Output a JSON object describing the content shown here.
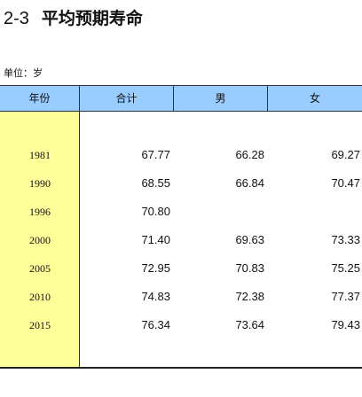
{
  "title": {
    "number": "2-3",
    "text": "平均预期寿命"
  },
  "unit": "单位：岁",
  "table": {
    "headers": [
      "年份",
      "合计",
      "男",
      "女"
    ],
    "rows": [
      {
        "year": "1981",
        "total": "67.77",
        "male": "66.28",
        "female": "69.27"
      },
      {
        "year": "1990",
        "total": "68.55",
        "male": "66.84",
        "female": "70.47"
      },
      {
        "year": "1996",
        "total": "70.80",
        "male": "",
        "female": ""
      },
      {
        "year": "2000",
        "total": "71.40",
        "male": "69.63",
        "female": "73.33"
      },
      {
        "year": "2005",
        "total": "72.95",
        "male": "70.83",
        "female": "75.25"
      },
      {
        "year": "2010",
        "total": "74.83",
        "male": "72.38",
        "female": "77.37"
      },
      {
        "year": "2015",
        "total": "76.34",
        "male": "73.64",
        "female": "79.43"
      }
    ]
  },
  "colors": {
    "header_bg": "#99ccff",
    "year_col_bg": "#ffff99"
  }
}
